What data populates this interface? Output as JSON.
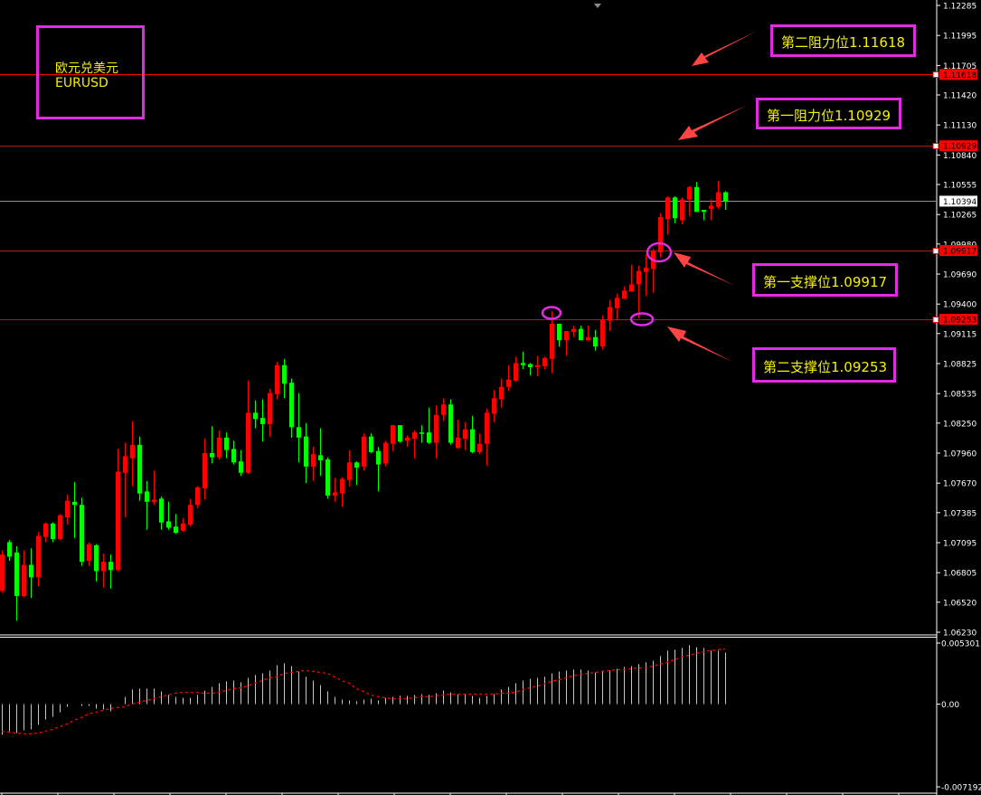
{
  "chart_data": {
    "type": "candlestick",
    "symbol": {
      "name_cn": "欧元兑美元",
      "name": "EURUSD"
    },
    "colors": {
      "up": "#ff0000",
      "down": "#00ff00",
      "background": "#000000",
      "histogram": "#c8c8c8",
      "signal": "#ff0000",
      "annotation_border": "#e22be2",
      "annotation_text": "#f5f000",
      "arrow": "#ff4444"
    },
    "ylim": [
      1.0623,
      1.12285
    ],
    "y_ticks": [
      "1.12285",
      "1.11995",
      "1.11705",
      "1.11420",
      "1.11130",
      "1.10840",
      "1.10555",
      "1.10265",
      "1.09980",
      "1.09690",
      "1.09400",
      "1.09115",
      "1.08825",
      "1.08535",
      "1.08250",
      "1.07960",
      "1.07670",
      "1.07385",
      "1.07095",
      "1.06805",
      "1.06520",
      "1.06230"
    ],
    "ohlc_fields": [
      "open",
      "high",
      "low",
      "close"
    ],
    "candles": [
      [
        1.0663,
        1.0702,
        1.0661,
        1.0698
      ],
      [
        1.071,
        1.0712,
        1.0692,
        1.0696
      ],
      [
        1.07,
        1.0706,
        1.0634,
        1.0658
      ],
      [
        1.0658,
        1.0702,
        1.0657,
        1.0688
      ],
      [
        1.0688,
        1.0704,
        1.0656,
        1.0676
      ],
      [
        1.0676,
        1.072,
        1.0667,
        1.0716
      ],
      [
        1.0715,
        1.0729,
        1.071,
        1.0728
      ],
      [
        1.0728,
        1.0729,
        1.071,
        1.0713
      ],
      [
        1.0713,
        1.0737,
        1.0712,
        1.0736
      ],
      [
        1.0734,
        1.0756,
        1.0727,
        1.075
      ],
      [
        1.0749,
        1.0768,
        1.0714,
        1.0746
      ],
      [
        1.0746,
        1.0753,
        1.0687,
        1.0691
      ],
      [
        1.0692,
        1.071,
        1.0687,
        1.0708
      ],
      [
        1.0707,
        1.0708,
        1.0672,
        1.0682
      ],
      [
        1.0682,
        1.0699,
        1.0666,
        1.0691
      ],
      [
        1.0691,
        1.0698,
        1.0665,
        1.0683
      ],
      [
        1.0683,
        1.08,
        1.0682,
        1.0778
      ],
      [
        1.0777,
        1.0806,
        1.0734,
        1.0793
      ],
      [
        1.0791,
        1.0827,
        1.0764,
        1.0804
      ],
      [
        1.0804,
        1.0812,
        1.075,
        1.0757
      ],
      [
        1.0759,
        1.0769,
        1.0722,
        1.0749
      ],
      [
        1.0749,
        1.0779,
        1.0746,
        1.0751
      ],
      [
        1.0752,
        1.0754,
        1.0722,
        1.0729
      ],
      [
        1.073,
        1.0749,
        1.0722,
        1.0724
      ],
      [
        1.0725,
        1.0737,
        1.0718,
        1.0719
      ],
      [
        1.0721,
        1.0733,
        1.072,
        1.0728
      ],
      [
        1.0727,
        1.0752,
        1.0725,
        1.0746
      ],
      [
        1.0746,
        1.0764,
        1.0743,
        1.0763
      ],
      [
        1.0762,
        1.081,
        1.0751,
        1.0796
      ],
      [
        1.0796,
        1.0822,
        1.0786,
        1.0792
      ],
      [
        1.0792,
        1.0818,
        1.079,
        1.0811
      ],
      [
        1.0811,
        1.0816,
        1.0791,
        1.0799
      ],
      [
        1.08,
        1.0808,
        1.0785,
        1.0787
      ],
      [
        1.0788,
        1.0799,
        1.0774,
        1.0777
      ],
      [
        1.0777,
        1.0866,
        1.0776,
        1.0835
      ],
      [
        1.0835,
        1.0847,
        1.082,
        1.0829
      ],
      [
        1.083,
        1.0848,
        1.0807,
        1.0824
      ],
      [
        1.0824,
        1.0858,
        1.0812,
        1.0854
      ],
      [
        1.0853,
        1.0884,
        1.0848,
        1.0881
      ],
      [
        1.0881,
        1.0887,
        1.0849,
        1.0863
      ],
      [
        1.0864,
        1.0868,
        1.0811,
        1.0821
      ],
      [
        1.0821,
        1.0854,
        1.0787,
        1.0811
      ],
      [
        1.0812,
        1.0825,
        1.0767,
        1.0783
      ],
      [
        1.0783,
        1.0802,
        1.0769,
        1.0795
      ],
      [
        1.0794,
        1.082,
        1.0774,
        1.0789
      ],
      [
        1.079,
        1.0792,
        1.0752,
        1.0755
      ],
      [
        1.0755,
        1.0772,
        1.0749,
        1.0758
      ],
      [
        1.0757,
        1.0773,
        1.0744,
        1.0771
      ],
      [
        1.077,
        1.0799,
        1.0764,
        1.0787
      ],
      [
        1.0787,
        1.0788,
        1.0765,
        1.0782
      ],
      [
        1.0783,
        1.0815,
        1.0779,
        1.0812
      ],
      [
        1.0812,
        1.0815,
        1.0796,
        1.0797
      ],
      [
        1.0798,
        1.0802,
        1.0759,
        1.0785
      ],
      [
        1.0786,
        1.0808,
        1.0783,
        1.0806
      ],
      [
        1.0805,
        1.0823,
        1.0798,
        1.0823
      ],
      [
        1.0823,
        1.0823,
        1.0806,
        1.0807
      ],
      [
        1.0808,
        1.0813,
        1.0802,
        1.0811
      ],
      [
        1.081,
        1.0818,
        1.0791,
        1.0816
      ],
      [
        1.0816,
        1.0823,
        1.0806,
        1.0815
      ],
      [
        1.0816,
        1.084,
        1.0805,
        1.0806
      ],
      [
        1.0806,
        1.0842,
        1.0791,
        1.0833
      ],
      [
        1.0833,
        1.0849,
        1.0827,
        1.0843
      ],
      [
        1.0843,
        1.0848,
        1.0804,
        1.0806
      ],
      [
        1.0801,
        1.0828,
        1.08,
        1.0811
      ],
      [
        1.081,
        1.0826,
        1.0799,
        1.0819
      ],
      [
        1.0819,
        1.0832,
        1.0796,
        1.0797
      ],
      [
        1.0797,
        1.0815,
        1.0795,
        1.0805
      ],
      [
        1.0805,
        1.0839,
        1.0784,
        1.0835
      ],
      [
        1.0834,
        1.0857,
        1.0826,
        1.0849
      ],
      [
        1.0848,
        1.0868,
        1.084,
        1.086
      ],
      [
        1.086,
        1.0881,
        1.0856,
        1.0867
      ],
      [
        1.0866,
        1.0889,
        1.0865,
        1.0883
      ],
      [
        1.0883,
        1.0894,
        1.0877,
        1.0881
      ],
      [
        1.0882,
        1.0883,
        1.0871,
        1.0879
      ],
      [
        1.0879,
        1.089,
        1.087,
        1.0881
      ],
      [
        1.088,
        1.0889,
        1.0877,
        1.0888
      ],
      [
        1.0887,
        1.0933,
        1.0873,
        1.0921
      ],
      [
        1.0921,
        1.0921,
        1.0899,
        1.0905
      ],
      [
        1.0905,
        1.0914,
        1.089,
        1.0914
      ],
      [
        1.0913,
        1.0919,
        1.0908,
        1.0916
      ],
      [
        1.0916,
        1.0919,
        1.0905,
        1.0905
      ],
      [
        1.0905,
        1.0919,
        1.0904,
        1.0908
      ],
      [
        1.0908,
        1.0915,
        1.0895,
        1.0899
      ],
      [
        1.0899,
        1.0929,
        1.0896,
        1.0925
      ],
      [
        1.0924,
        1.0944,
        1.0914,
        1.0937
      ],
      [
        1.0936,
        1.095,
        1.0925,
        1.0946
      ],
      [
        1.0945,
        1.0957,
        1.0945,
        1.0953
      ],
      [
        1.0952,
        1.0978,
        1.0952,
        1.0959
      ],
      [
        1.0959,
        1.0977,
        1.0926,
        1.0972
      ],
      [
        1.0971,
        1.0988,
        1.0948,
        1.0975
      ],
      [
        1.0974,
        1.0993,
        1.0951,
        1.0991
      ],
      [
        1.099,
        1.1028,
        1.0985,
        1.1024
      ],
      [
        1.1022,
        1.1044,
        1.1007,
        1.1043
      ],
      [
        1.1043,
        1.1044,
        1.1018,
        1.1023
      ],
      [
        1.1021,
        1.1043,
        1.1017,
        1.1041
      ],
      [
        1.1041,
        1.1054,
        1.1025,
        1.1053
      ],
      [
        1.1053,
        1.1058,
        1.1029,
        1.1029
      ],
      [
        1.1031,
        1.1031,
        1.1021,
        1.1029
      ],
      [
        1.1032,
        1.1041,
        1.1021,
        1.1035
      ],
      [
        1.1034,
        1.1059,
        1.1032,
        1.1048
      ],
      [
        1.1048,
        1.1049,
        1.1031,
        1.1039
      ]
    ],
    "current_price": "1.10394",
    "levels": [
      {
        "price": 1.11618,
        "label": "1.11618",
        "text": "第二阻力位1.11618",
        "kind": "resistance"
      },
      {
        "price": 1.10929,
        "label": "1.10929",
        "text": "第一阻力位1.10929",
        "kind": "resistance"
      },
      {
        "price": 1.09917,
        "label": "1.09917",
        "text": "第一支撑位1.09917",
        "kind": "support"
      },
      {
        "price": 1.09253,
        "label": "1.09253",
        "text": "第二支撑位1.09253",
        "kind": "support"
      }
    ],
    "indicator": {
      "type": "histogram+signal",
      "ylim": [
        -0.007192,
        0.005301
      ],
      "y_ticks": [
        "0.005301",
        "0.00",
        "-0.007192"
      ],
      "histogram": [
        -0.00267,
        -0.00236,
        -0.00252,
        -0.00228,
        -0.0022,
        -0.00181,
        -0.00134,
        -0.0011,
        -0.00071,
        -0.00024,
        0,
        -0.00016,
        -0.00016,
        -0.00039,
        -0.00047,
        -0.00063,
        0,
        0.00063,
        0.00126,
        0.00134,
        0.00134,
        0.00134,
        0.0011,
        0.00079,
        0.00063,
        0.00055,
        0.00055,
        0.00079,
        0.00118,
        0.00149,
        0.00181,
        0.00197,
        0.00204,
        0.00189,
        0.00228,
        0.00252,
        0.00267,
        0.00291,
        0.00338,
        0.00354,
        0.0033,
        0.00283,
        0.00236,
        0.00204,
        0.00165,
        0.0011,
        0.00063,
        0.00039,
        0.00031,
        0.00024,
        0.00039,
        0.00047,
        0.00031,
        0.00055,
        0.00063,
        0.00071,
        0.00071,
        0.00079,
        0.00086,
        0.00079,
        0.00094,
        0.00118,
        0.00102,
        0.00086,
        0.00086,
        0.00071,
        0.00055,
        0.00071,
        0.00086,
        0.00126,
        0.00149,
        0.00181,
        0.00204,
        0.0022,
        0.00228,
        0.00236,
        0.00267,
        0.00283,
        0.00291,
        0.00299,
        0.00299,
        0.00291,
        0.00275,
        0.00291,
        0.00291,
        0.00307,
        0.00322,
        0.0033,
        0.00346,
        0.00362,
        0.00377,
        0.00417,
        0.00464,
        0.00472,
        0.00487,
        0.00511,
        0.00495,
        0.00487,
        0.00464,
        0.00464,
        0.00448
      ],
      "signal": [
        -0.00236,
        -0.00244,
        -0.00252,
        -0.00259,
        -0.00259,
        -0.00252,
        -0.00236,
        -0.0022,
        -0.00197,
        -0.00173,
        -0.00141,
        -0.00118,
        -0.00086,
        -0.00071,
        -0.00055,
        -0.00039,
        -0.00031,
        -0.00024,
        0,
        0.00016,
        0.00031,
        0.00047,
        0.00063,
        0.00079,
        0.00094,
        0.00102,
        0.00102,
        0.00102,
        0.00094,
        0.00094,
        0.00102,
        0.00118,
        0.00134,
        0.00141,
        0.00157,
        0.00181,
        0.00204,
        0.00228,
        0.00236,
        0.00267,
        0.00275,
        0.00283,
        0.00291,
        0.00283,
        0.00275,
        0.00267,
        0.00236,
        0.00204,
        0.00181,
        0.00134,
        0.0011,
        0.00079,
        0.00063,
        0.00055,
        0.00047,
        0.00047,
        0.00047,
        0.00055,
        0.00063,
        0.00063,
        0.00071,
        0.00079,
        0.00086,
        0.00086,
        0.00086,
        0.00086,
        0.00086,
        0.00086,
        0.00086,
        0.00094,
        0.00094,
        0.00102,
        0.00126,
        0.00141,
        0.00157,
        0.00173,
        0.00197,
        0.00212,
        0.00228,
        0.00244,
        0.00259,
        0.00267,
        0.00275,
        0.00283,
        0.00291,
        0.00299,
        0.00299,
        0.00307,
        0.00314,
        0.00314,
        0.0033,
        0.00346,
        0.00362,
        0.00385,
        0.00409,
        0.00424,
        0.0044,
        0.00456,
        0.00464,
        0.00472,
        0.00479
      ]
    }
  }
}
